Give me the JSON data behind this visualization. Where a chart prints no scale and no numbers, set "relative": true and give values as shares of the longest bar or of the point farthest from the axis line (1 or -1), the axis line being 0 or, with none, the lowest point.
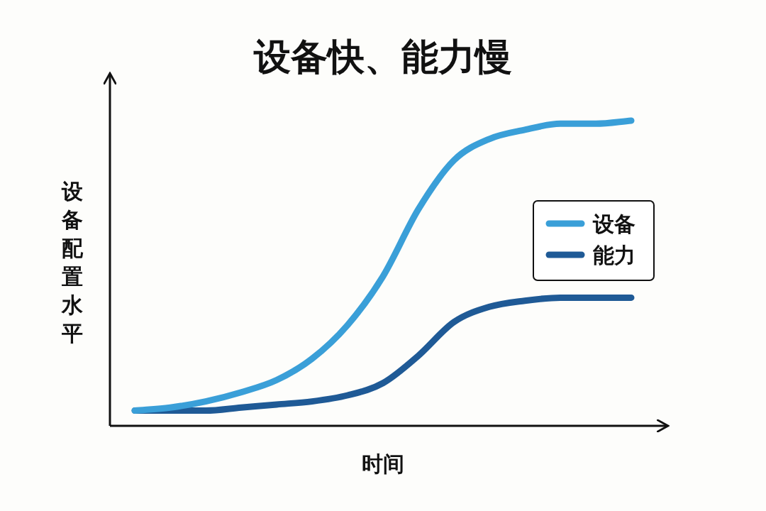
{
  "chart_data": {
    "type": "line",
    "title": "设备快、能力慢",
    "xlabel": "时间",
    "ylabel": "设备配置水平",
    "relative": true,
    "legend": "right",
    "categories": [
      null,
      null,
      null,
      null,
      null,
      null,
      null,
      null,
      null,
      null,
      null,
      null,
      null,
      null,
      null
    ],
    "series": [
      {
        "name": "设备",
        "color": "#3a9fd8",
        "values": [
          0.05,
          0.06,
          0.08,
          0.11,
          0.15,
          0.22,
          0.33,
          0.49,
          0.71,
          0.87,
          0.94,
          0.97,
          0.99,
          0.99,
          1
        ]
      },
      {
        "name": "能力",
        "color": "#1f5a96",
        "values": [
          0.05,
          0.05,
          0.05,
          0.06,
          0.07,
          0.08,
          0.1,
          0.14,
          0.23,
          0.34,
          0.39,
          0.41,
          0.42,
          0.42,
          0.42
        ]
      }
    ]
  }
}
